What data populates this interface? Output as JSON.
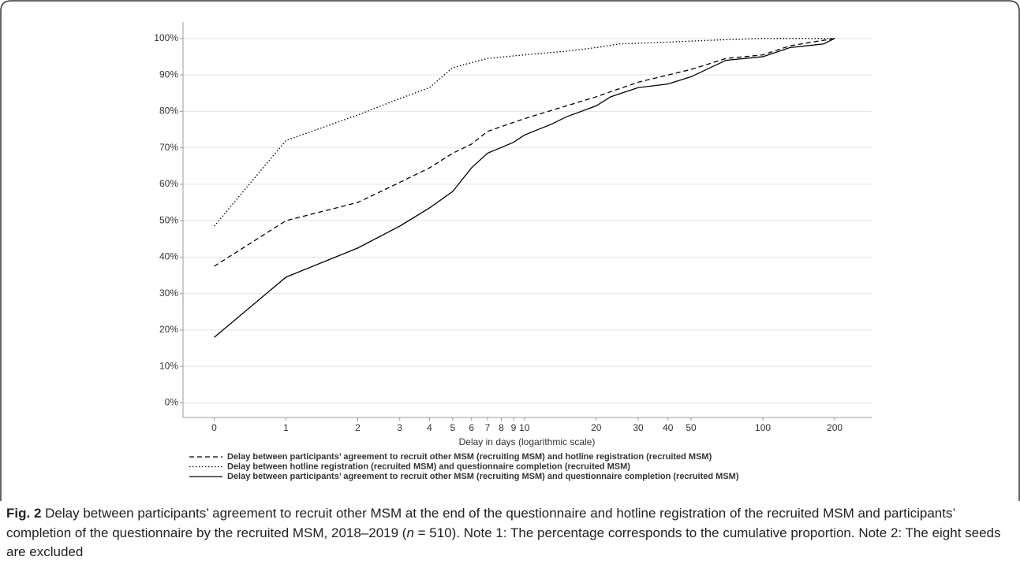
{
  "chart_data": {
    "type": "line",
    "x_label": "Delay in days (logarithmic scale)",
    "xscale": "log",
    "xlim": [
      0.37,
      286
    ],
    "xticks": [
      {
        "value": 0.5,
        "label": "0"
      },
      1,
      2,
      3,
      4,
      5,
      6,
      7,
      8,
      9,
      10,
      20,
      30,
      40,
      50,
      100,
      200
    ],
    "ylim": [
      -4,
      104.5
    ],
    "yticks": [
      {
        "value": 0,
        "label": "0%"
      },
      {
        "value": 10,
        "label": "10%"
      },
      {
        "value": 20,
        "label": "20%"
      },
      {
        "value": 30,
        "label": "30%"
      },
      {
        "value": 40,
        "label": "40%"
      },
      {
        "value": 50,
        "label": "50%"
      },
      {
        "value": 60,
        "label": "60%"
      },
      {
        "value": 70,
        "label": "70%"
      },
      {
        "value": 80,
        "label": "80%"
      },
      {
        "value": 90,
        "label": "90%"
      },
      {
        "value": 100,
        "label": "100%"
      }
    ],
    "grid": true,
    "series": [
      {
        "name": "Delay between participants’ agreement to recruit other MSM (recruiting MSM) and hotline registration (recruited MSM)",
        "color": "#000000",
        "dash": "dashed",
        "x": [
          0.5,
          1,
          2,
          3,
          4,
          5,
          6,
          7,
          10,
          15,
          20,
          30,
          50,
          70,
          100,
          130,
          200
        ],
        "values": [
          37.5,
          50,
          55,
          60.5,
          64.5,
          68.5,
          71,
          74.5,
          78,
          81.5,
          84,
          88,
          91.5,
          94.5,
          95.5,
          98,
          100
        ]
      },
      {
        "name": "Delay between hotline registration (recruited MSM) and questionnaire completion (recruited MSM)",
        "color": "#000000",
        "dash": "dotted",
        "x": [
          0.5,
          1,
          2,
          3,
          4,
          5,
          7,
          10,
          15,
          20,
          25,
          40,
          60,
          100,
          200
        ],
        "values": [
          48.5,
          72,
          79,
          83.5,
          86.5,
          92,
          94.5,
          95.5,
          96.5,
          97.5,
          98.5,
          99,
          99.5,
          100,
          100
        ]
      },
      {
        "name": "Delay between participants’ agreement to recruit other MSM (recruiting MSM) and questionnaire completion (recruited MSM)",
        "color": "#000000",
        "dash": "solid",
        "x": [
          0.5,
          1,
          2,
          3,
          4,
          5,
          6,
          7,
          9,
          10,
          13,
          15,
          20,
          23,
          30,
          40,
          50,
          70,
          100,
          130,
          180,
          200
        ],
        "values": [
          18,
          34.5,
          42.5,
          48.5,
          53.5,
          58,
          64.5,
          68.5,
          71.5,
          73.5,
          76.5,
          78.5,
          81.5,
          84,
          86.5,
          87.5,
          89.5,
          94,
          95,
          97.5,
          98.5,
          100
        ]
      }
    ]
  },
  "caption": {
    "label": "Fig. 2",
    "parts": [
      "Delay between participants’ agreement to recruit other MSM at the end of the questionnaire and hotline registration of the recruited MSM and participants’ completion of the questionnaire by the recruited MSM, 2018–2019 (",
      "n",
      " = 510). Note 1: The percentage corresponds to the cumulative proportion. Note 2: The eight seeds are excluded"
    ]
  }
}
